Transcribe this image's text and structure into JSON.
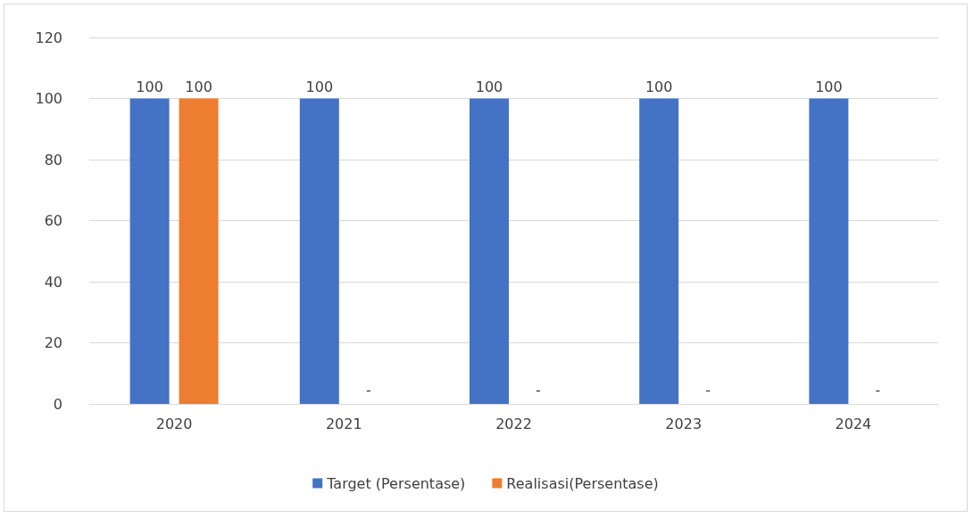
{
  "chart_data": {
    "type": "bar",
    "categories": [
      "2020",
      "2021",
      "2022",
      "2023",
      "2024"
    ],
    "series": [
      {
        "name": "Target (Persentase)",
        "color": "#4472c4",
        "values": [
          100,
          100,
          100,
          100,
          100
        ],
        "value_labels": [
          "100",
          "100",
          "100",
          "100",
          "100"
        ]
      },
      {
        "name": "Realisasi(Persentase)",
        "color": "#ed7d31",
        "values": [
          100,
          null,
          null,
          null,
          null
        ],
        "value_labels": [
          "100",
          "-",
          "-",
          "-",
          "-"
        ]
      }
    ],
    "ylim": [
      0,
      120
    ],
    "yticks": [
      0,
      20,
      40,
      60,
      80,
      100,
      120
    ],
    "grid": "y",
    "legend": "bottom"
  }
}
